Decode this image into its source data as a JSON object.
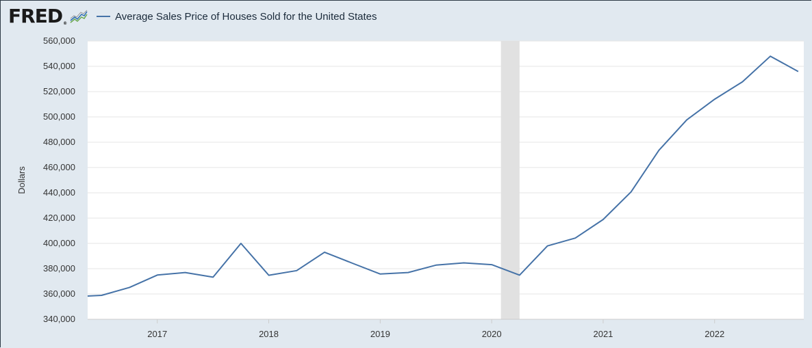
{
  "header": {
    "logo_text": "FRED",
    "logo_mark": "®",
    "chart_icon": "line-chart-icon",
    "legend_label": "Average Sales Price of Houses Sold for the United States"
  },
  "colors": {
    "series": "#4572a7",
    "recession": "#e1e1e1",
    "background": "#e1e9f0",
    "plot": "#ffffff",
    "grid": "#e6e6e6"
  },
  "chart_data": {
    "type": "line",
    "title": "Average Sales Price of Houses Sold for the United States",
    "ylabel": "Dollars",
    "xlabel": "",
    "ylim": [
      340000,
      560000
    ],
    "yticks": [
      340000,
      360000,
      380000,
      400000,
      420000,
      440000,
      460000,
      480000,
      500000,
      520000,
      540000,
      560000
    ],
    "ytick_labels": [
      "340,000",
      "360,000",
      "380,000",
      "400,000",
      "420,000",
      "440,000",
      "460,000",
      "480,000",
      "500,000",
      "520,000",
      "540,000",
      "560,000"
    ],
    "xlim": [
      2016.375,
      2022.8
    ],
    "xticks": [
      2017,
      2018,
      2019,
      2020,
      2021,
      2022
    ],
    "xtick_labels": [
      "2017",
      "2018",
      "2019",
      "2020",
      "2021",
      "2022"
    ],
    "recession": [
      2020.083,
      2020.25
    ],
    "grid": true,
    "series": [
      {
        "name": "Average Sales Price of Houses Sold for the United States",
        "x": [
          2016.375,
          2016.5,
          2016.75,
          2017.0,
          2017.25,
          2017.5,
          2017.75,
          2018.0,
          2018.25,
          2018.5,
          2018.75,
          2019.0,
          2019.25,
          2019.5,
          2019.75,
          2020.0,
          2020.25,
          2020.5,
          2020.75,
          2021.0,
          2021.25,
          2021.5,
          2021.75,
          2022.0,
          2022.25,
          2022.5,
          2022.75
        ],
        "values": [
          358400,
          358900,
          365200,
          375000,
          377000,
          373300,
          400000,
          374800,
          378500,
          393000,
          384300,
          375800,
          377000,
          382800,
          384600,
          383200,
          374900,
          398000,
          404200,
          418900,
          440700,
          473600,
          497700,
          514000,
          527800,
          548000,
          535900
        ]
      }
    ]
  }
}
